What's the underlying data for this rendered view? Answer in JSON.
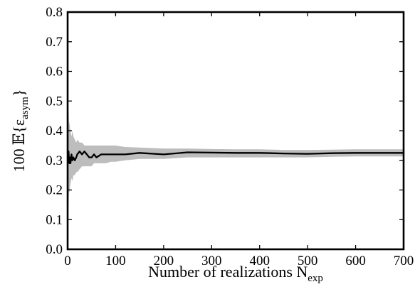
{
  "chart_data": {
    "type": "line",
    "xlabel": "Number of realizations N",
    "xlabel_subscript": "exp",
    "ylabel_prefix": "100",
    "ylabel_operator": "𝔼{ε",
    "ylabel_subscript": "asym",
    "ylabel_suffix": "}",
    "xlim": [
      0,
      700
    ],
    "ylim": [
      0.0,
      0.8
    ],
    "xticks": [
      "0",
      "100",
      "200",
      "300",
      "400",
      "500",
      "600",
      "700"
    ],
    "yticks": [
      "0.0",
      "0.1",
      "0.2",
      "0.3",
      "0.4",
      "0.5",
      "0.6",
      "0.7",
      "0.8"
    ],
    "grid": false,
    "series": [
      {
        "role": "mean",
        "color": "#000000",
        "x": [
          1,
          2,
          3,
          4,
          5,
          6,
          8,
          10,
          12,
          15,
          18,
          20,
          25,
          30,
          35,
          40,
          45,
          50,
          55,
          60,
          70,
          80,
          90,
          100,
          120,
          150,
          200,
          250,
          300,
          350,
          400,
          450,
          500,
          550,
          600,
          650,
          700
        ],
        "y": [
          0.29,
          0.33,
          0.3,
          0.29,
          0.31,
          0.29,
          0.32,
          0.3,
          0.31,
          0.3,
          0.31,
          0.32,
          0.33,
          0.32,
          0.33,
          0.32,
          0.31,
          0.31,
          0.32,
          0.31,
          0.32,
          0.32,
          0.32,
          0.32,
          0.32,
          0.325,
          0.32,
          0.327,
          0.326,
          0.325,
          0.325,
          0.323,
          0.322,
          0.324,
          0.325,
          0.325,
          0.325
        ]
      },
      {
        "role": "upper-bound",
        "color": "#bdbdbd",
        "x": [
          1,
          2,
          3,
          4,
          5,
          6,
          8,
          10,
          12,
          15,
          18,
          20,
          25,
          30,
          35,
          40,
          45,
          50,
          55,
          60,
          70,
          80,
          90,
          100,
          120,
          150,
          200,
          250,
          300,
          350,
          400,
          450,
          500,
          550,
          600,
          650,
          700
        ],
        "y": [
          0.48,
          0.46,
          0.42,
          0.43,
          0.41,
          0.4,
          0.38,
          0.4,
          0.38,
          0.37,
          0.36,
          0.37,
          0.36,
          0.36,
          0.35,
          0.35,
          0.35,
          0.35,
          0.35,
          0.35,
          0.35,
          0.35,
          0.35,
          0.35,
          0.345,
          0.343,
          0.34,
          0.34,
          0.338,
          0.337,
          0.337,
          0.335,
          0.335,
          0.336,
          0.337,
          0.337,
          0.337
        ]
      },
      {
        "role": "lower-bound",
        "color": "#bdbdbd",
        "x": [
          1,
          2,
          3,
          4,
          5,
          6,
          8,
          10,
          12,
          15,
          18,
          20,
          25,
          30,
          35,
          40,
          45,
          50,
          55,
          60,
          70,
          80,
          90,
          100,
          120,
          150,
          200,
          250,
          300,
          350,
          400,
          450,
          500,
          550,
          600,
          650,
          700
        ],
        "y": [
          0.13,
          0.16,
          0.2,
          0.19,
          0.21,
          0.22,
          0.24,
          0.23,
          0.25,
          0.25,
          0.26,
          0.26,
          0.27,
          0.28,
          0.28,
          0.28,
          0.28,
          0.28,
          0.29,
          0.29,
          0.29,
          0.29,
          0.295,
          0.295,
          0.3,
          0.305,
          0.305,
          0.31,
          0.31,
          0.31,
          0.31,
          0.31,
          0.31,
          0.312,
          0.313,
          0.313,
          0.313
        ]
      }
    ]
  }
}
